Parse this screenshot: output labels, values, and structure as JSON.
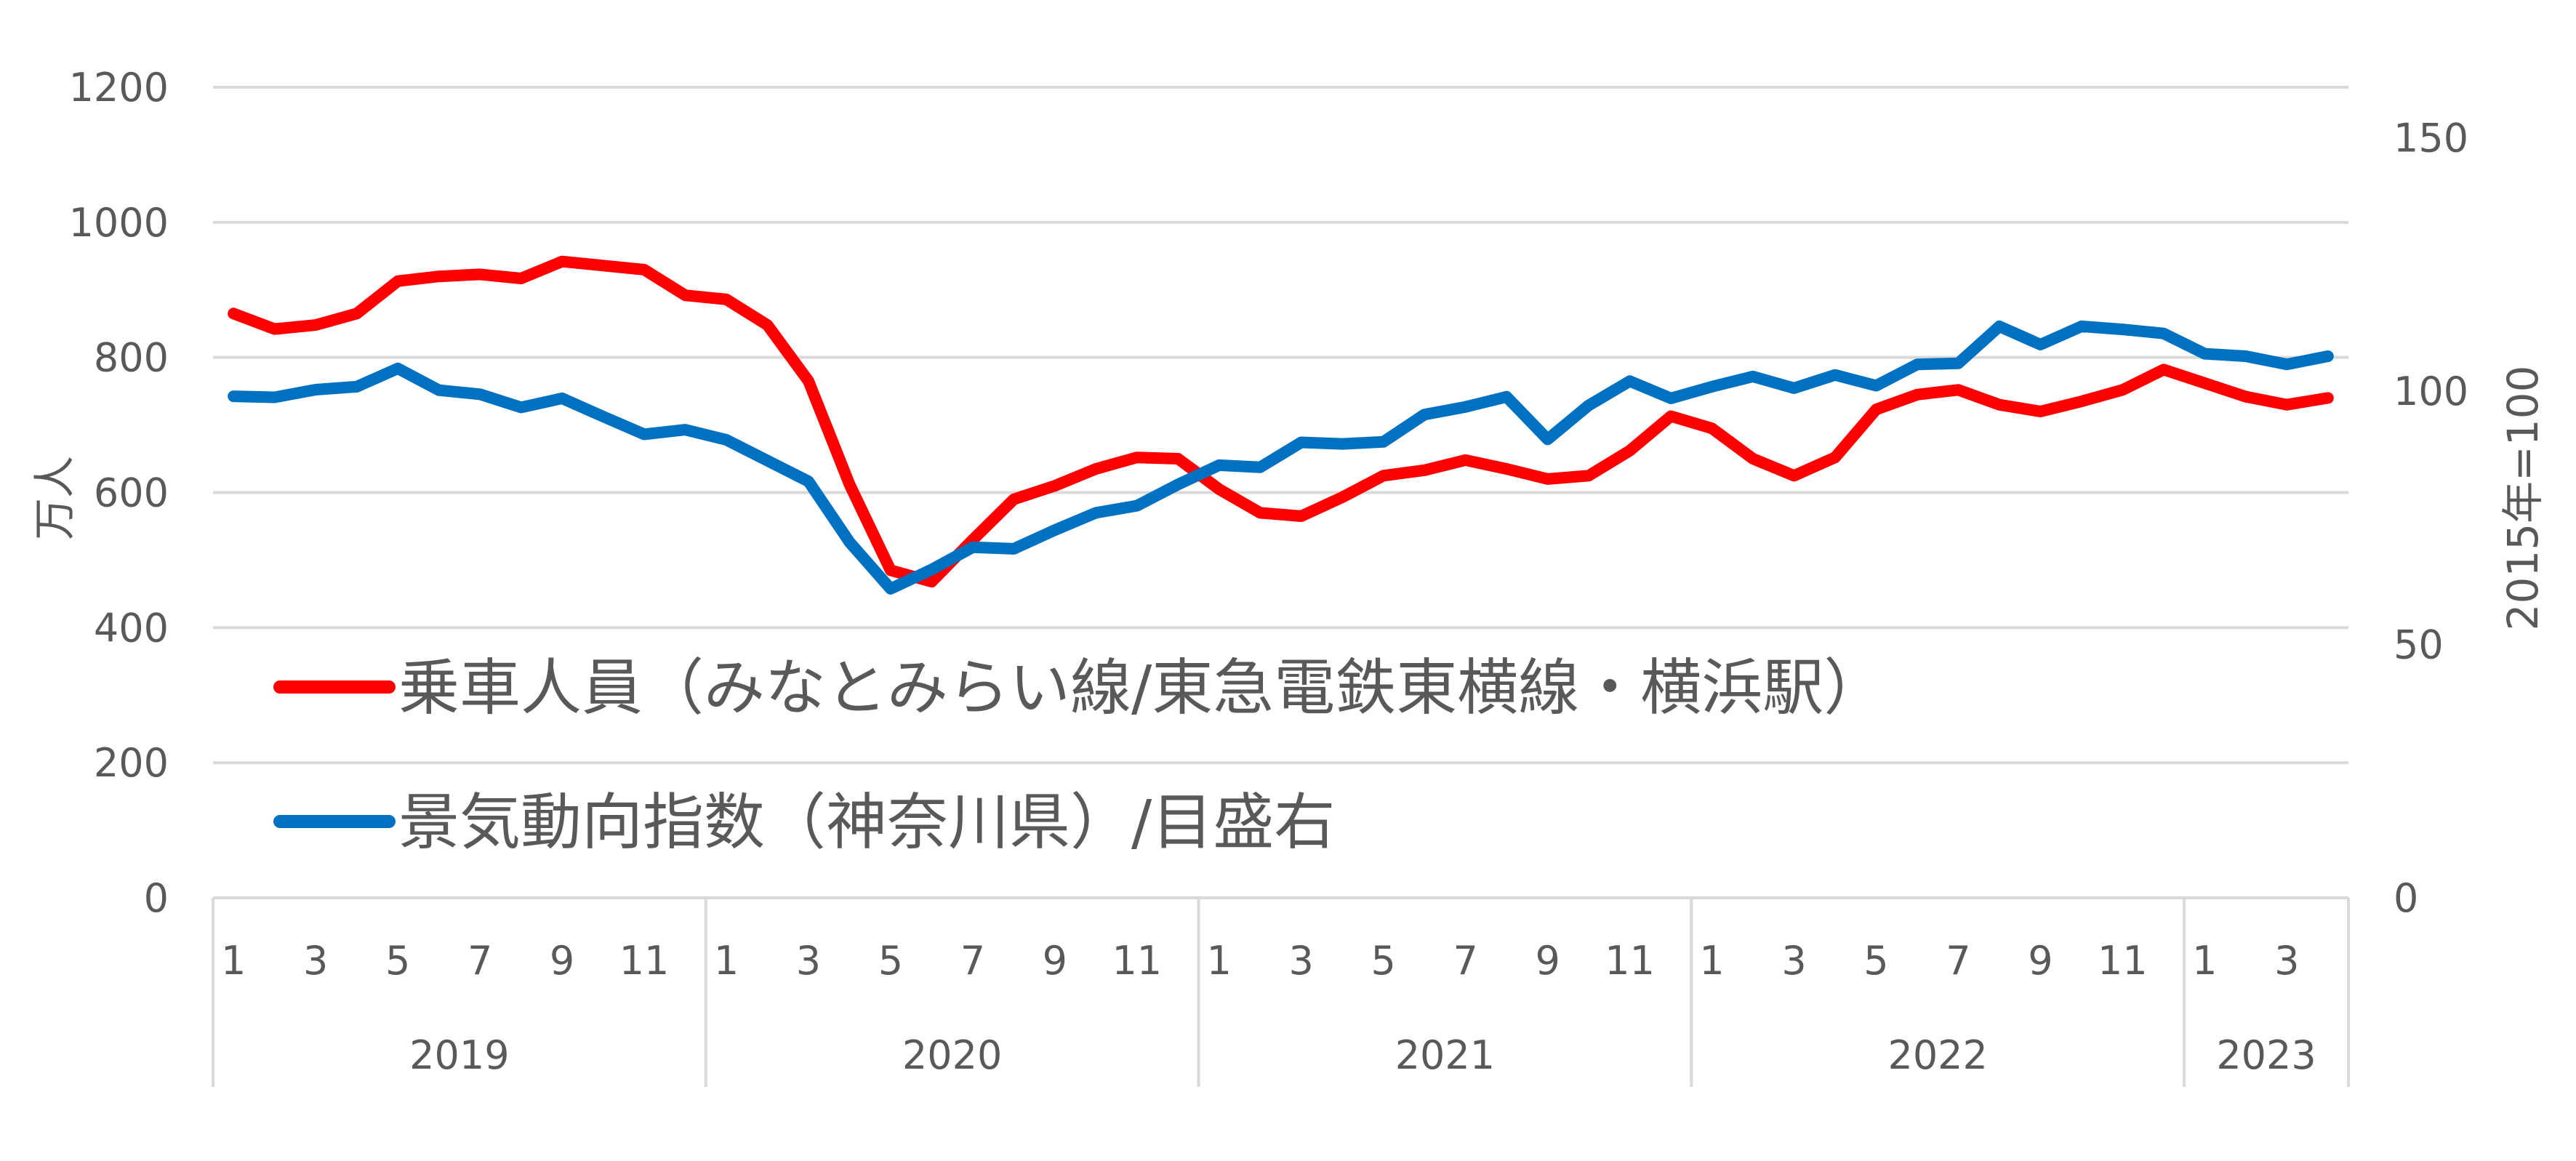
{
  "chart_data": {
    "type": "line",
    "x_months": [
      "1",
      "2",
      "3",
      "4",
      "5",
      "6",
      "7",
      "8",
      "9",
      "10",
      "11",
      "12",
      "1",
      "2",
      "3",
      "4",
      "5",
      "6",
      "7",
      "8",
      "9",
      "10",
      "11",
      "12",
      "1",
      "2",
      "3",
      "4",
      "5",
      "6",
      "7",
      "8",
      "9",
      "10",
      "11",
      "12",
      "1",
      "2",
      "3",
      "4",
      "5",
      "6",
      "7",
      "8",
      "9",
      "10",
      "11",
      "12",
      "1",
      "2",
      "3",
      "4"
    ],
    "month_tick_labels": [
      "1",
      "",
      "3",
      "",
      "5",
      "",
      "7",
      "",
      "9",
      "",
      "11",
      "",
      "1",
      "",
      "3",
      "",
      "5",
      "",
      "7",
      "",
      "9",
      "",
      "11",
      "",
      "1",
      "",
      "3",
      "",
      "5",
      "",
      "7",
      "",
      "9",
      "",
      "11",
      "",
      "1",
      "",
      "3",
      "",
      "5",
      "",
      "7",
      "",
      "9",
      "",
      "11",
      "",
      "1",
      "",
      "3",
      ""
    ],
    "year_groups": [
      {
        "label": "2019",
        "months": 12
      },
      {
        "label": "2020",
        "months": 12
      },
      {
        "label": "2021",
        "months": 12
      },
      {
        "label": "2022",
        "months": 12
      },
      {
        "label": "2023",
        "months": 4
      }
    ],
    "y_left": {
      "label": "万人",
      "range": [
        0,
        1200
      ],
      "ticks": [
        "0",
        "200",
        "400",
        "600",
        "800",
        "1000",
        "1200"
      ]
    },
    "y_right": {
      "label": "2015年=100",
      "range": [
        0,
        160
      ],
      "ticks": [
        "0",
        "50",
        "100",
        "150"
      ]
    },
    "grid": true,
    "legend_placement": "inside-lower-left",
    "series": [
      {
        "name": "乗車人員（みなとみらい線/東急電鉄東横線・横浜駅）",
        "axis": "left",
        "color": "#ff0000",
        "values": [
          865,
          842,
          848,
          865,
          913,
          920,
          923,
          917,
          942,
          936,
          930,
          892,
          886,
          848,
          765,
          612,
          485,
          468,
          530,
          590,
          610,
          635,
          652,
          650,
          605,
          570,
          565,
          593,
          625,
          633,
          648,
          635,
          620,
          625,
          662,
          713,
          695,
          650,
          625,
          652,
          723,
          745,
          752,
          730,
          720,
          735,
          752,
          782,
          762,
          742,
          730,
          740
        ]
      },
      {
        "name": "景気動向指数（神奈川県）/目盛右",
        "axis": "right",
        "color": "#0070c0",
        "values": [
          99.0,
          98.8,
          100.3,
          100.9,
          104.5,
          100.2,
          99.4,
          96.8,
          98.6,
          95.0,
          91.5,
          92.4,
          90.4,
          86.3,
          82.2,
          70.2,
          61.0,
          64.8,
          69.2,
          68.9,
          72.6,
          76.0,
          77.4,
          81.6,
          85.4,
          85.0,
          89.9,
          89.6,
          90.0,
          95.4,
          96.9,
          98.9,
          90.5,
          97.2,
          102.0,
          98.6,
          100.9,
          102.9,
          100.6,
          103.2,
          101.1,
          105.3,
          105.5,
          112.8,
          109.2,
          112.8,
          112.2,
          111.4,
          107.4,
          106.9,
          105.3,
          106.9
        ]
      }
    ]
  }
}
